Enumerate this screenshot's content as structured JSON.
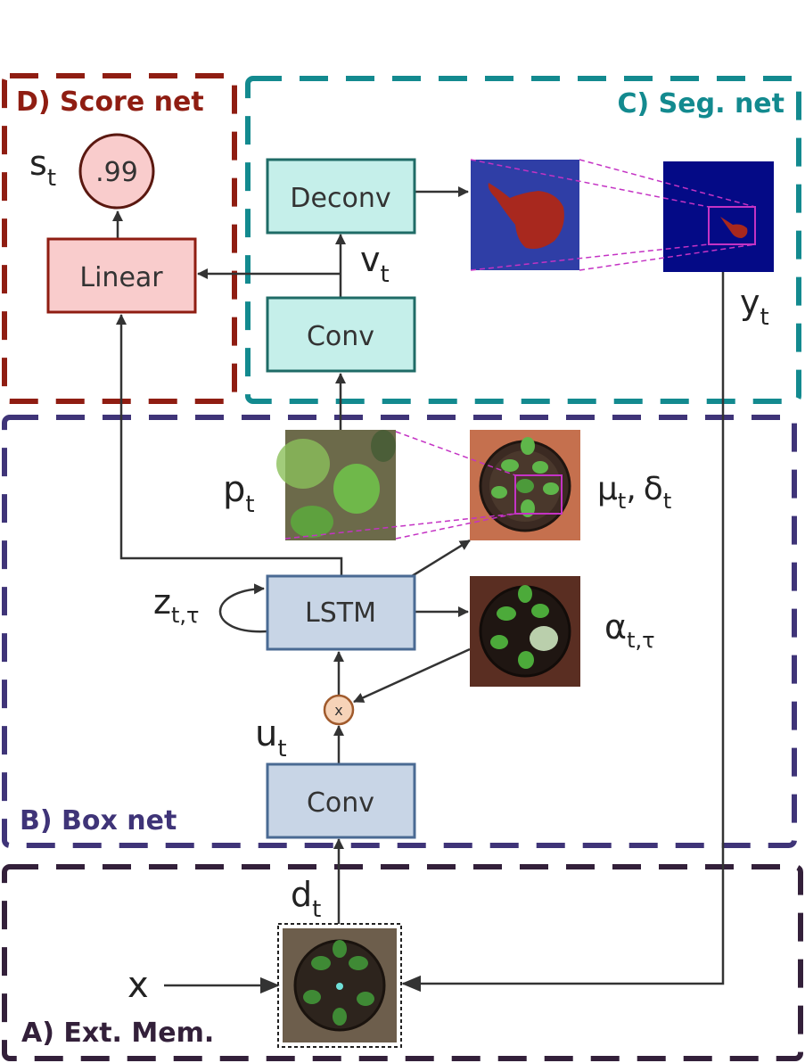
{
  "regions": {
    "score_net": {
      "label": "D) Score net",
      "color": "#8f1d12"
    },
    "seg_net": {
      "label": "C) Seg. net",
      "color": "#138a8f"
    },
    "box_net": {
      "label": "B) Box net",
      "color": "#3f3478"
    },
    "ext_mem": {
      "label": "A) Ext. Mem.",
      "color": "#33203a"
    }
  },
  "boxes": {
    "linear": "Linear",
    "deconv": "Deconv",
    "conv_seg": "Conv",
    "lstm": "LSTM",
    "conv_box": "Conv"
  },
  "score_circle": ".99",
  "multiply_symbol": "x",
  "symbols": {
    "s": {
      "base": "s",
      "sub": "t"
    },
    "v": {
      "base": "v",
      "sub": "t"
    },
    "y": {
      "base": "y",
      "sub": "t"
    },
    "p": {
      "base": "p",
      "sub": "t"
    },
    "mu": {
      "base": "μ",
      "sub": "t"
    },
    "comma": ",",
    "delta": {
      "base": "δ",
      "sub": "t"
    },
    "z": {
      "base": "z",
      "sub": "t,τ"
    },
    "alpha": {
      "base": "α",
      "sub": "t,τ"
    },
    "u": {
      "base": "u",
      "sub": "t"
    },
    "d": {
      "base": "d",
      "sub": "t"
    },
    "x": "x"
  },
  "colors": {
    "linear_fill": "#f9cccc",
    "linear_stroke": "#8f1d12",
    "seg_fill": "#c5efea",
    "seg_stroke": "#1f6b66",
    "box_fill": "#c8d5e6",
    "box_stroke": "#4a6a93",
    "attention_line": "#c433c4"
  }
}
